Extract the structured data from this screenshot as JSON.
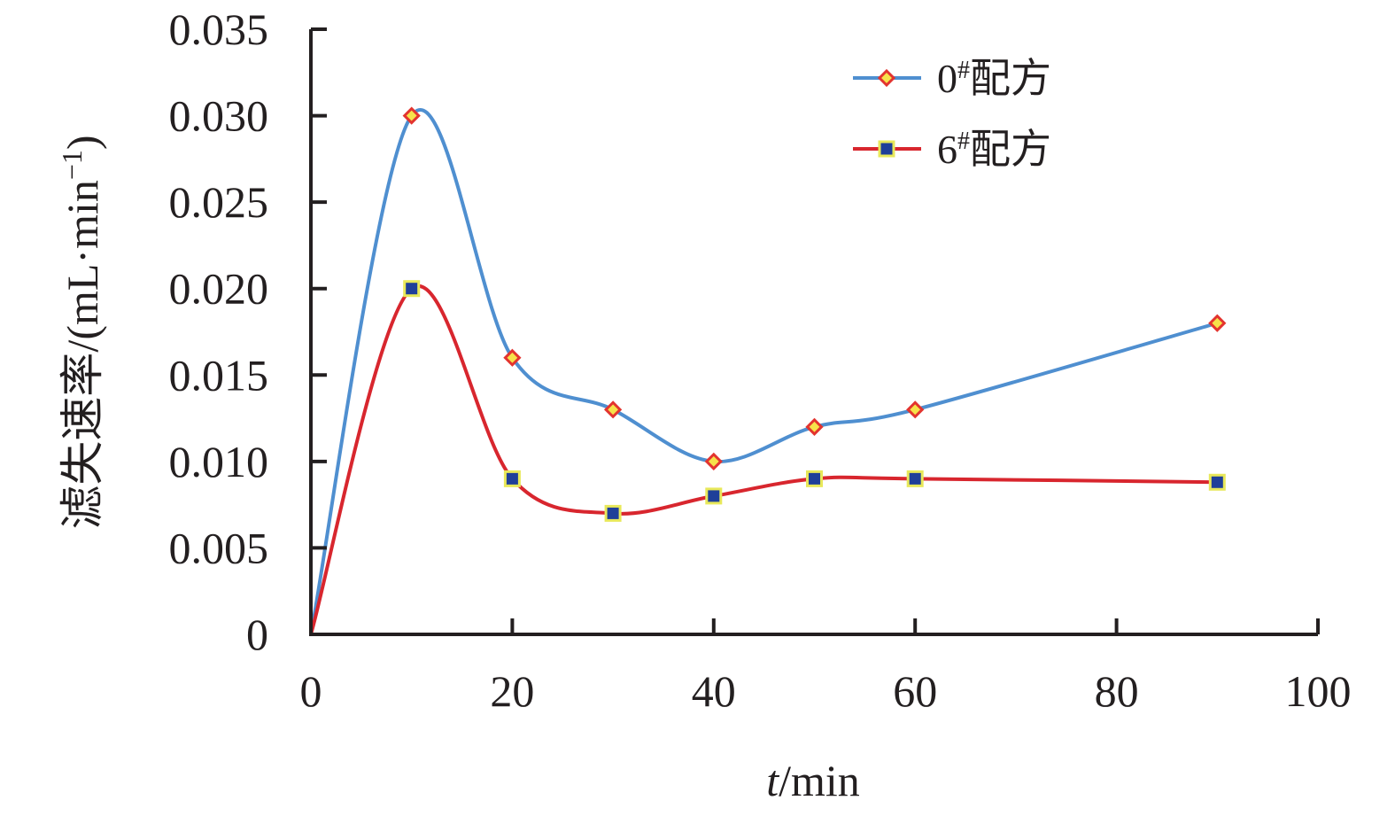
{
  "chart_data": {
    "type": "line",
    "title": "",
    "xlabel_italic": "t",
    "xlabel_rest": "/min",
    "ylabel": "滤失速率/(mL·min",
    "ylabel_sup": "−1",
    "ylabel_close": ")",
    "xlim": [
      0,
      100
    ],
    "ylim": [
      0,
      0.035
    ],
    "xticks": [
      0,
      20,
      40,
      60,
      80,
      100
    ],
    "xtick_labels": [
      "0",
      "20",
      "40",
      "60",
      "80",
      "100"
    ],
    "yticks": [
      0,
      0.005,
      0.01,
      0.015,
      0.02,
      0.025,
      0.03,
      0.035
    ],
    "ytick_labels": [
      "0",
      "0.005",
      "0.010",
      "0.015",
      "0.020",
      "0.025",
      "0.030",
      "0.035"
    ],
    "grid": false,
    "legend_position": "top-right",
    "series": [
      {
        "name": "0#配方",
        "name_digit": "0",
        "name_sup": "#",
        "name_rest": "配方",
        "color": "#4f8fd0",
        "marker": "diamond",
        "marker_fill": "#f7e24a",
        "marker_edge": "#e3342f",
        "x": [
          0,
          10,
          20,
          30,
          40,
          50,
          60,
          90
        ],
        "y": [
          0,
          0.03,
          0.016,
          0.013,
          0.01,
          0.012,
          0.013,
          0.018
        ]
      },
      {
        "name": "6#配方",
        "name_digit": "6",
        "name_sup": "#",
        "name_rest": "配方",
        "color": "#d8262e",
        "marker": "square",
        "marker_fill": "#1f3f99",
        "marker_edge": "#e8e85a",
        "x": [
          0,
          10,
          20,
          30,
          40,
          50,
          60,
          90
        ],
        "y": [
          0,
          0.02,
          0.009,
          0.007,
          0.008,
          0.009,
          0.009,
          0.0088
        ]
      }
    ]
  }
}
